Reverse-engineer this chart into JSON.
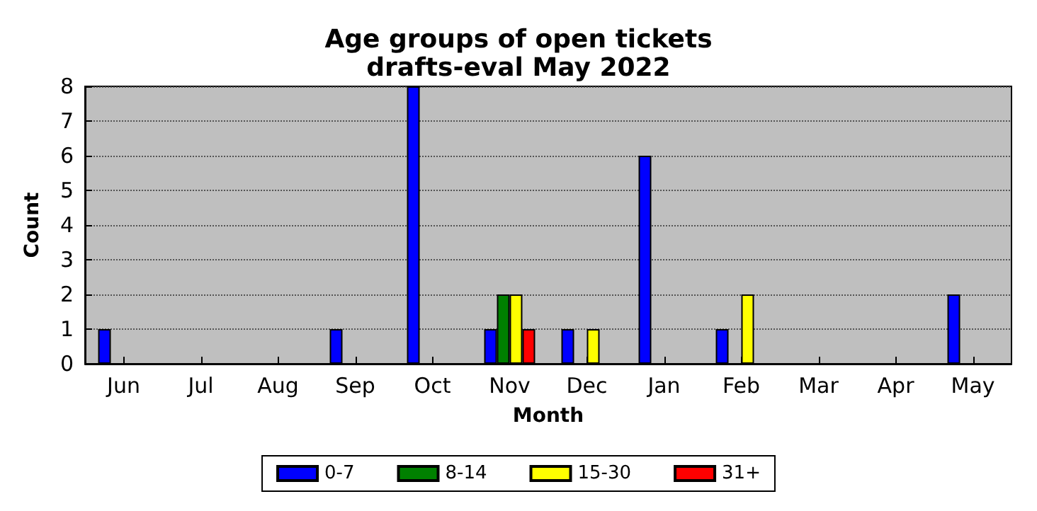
{
  "chart_data": {
    "type": "bar",
    "title": "Age groups of open tickets",
    "subtitle": "drafts-eval May 2022",
    "xlabel": "Month",
    "ylabel": "Count",
    "categories": [
      "Jun",
      "Jul",
      "Aug",
      "Sep",
      "Oct",
      "Nov",
      "Dec",
      "Jan",
      "Feb",
      "Mar",
      "Apr",
      "May"
    ],
    "series": [
      {
        "name": "0-7",
        "color": "#0000ff",
        "values": [
          1,
          0,
          0,
          1,
          8,
          1,
          1,
          6,
          1,
          0,
          0,
          2
        ]
      },
      {
        "name": "8-14",
        "color": "#008000",
        "values": [
          0,
          0,
          0,
          0,
          0,
          2,
          0,
          0,
          0,
          0,
          0,
          0
        ]
      },
      {
        "name": "15-30",
        "color": "#ffff00",
        "values": [
          0,
          0,
          0,
          0,
          0,
          2,
          1,
          0,
          2,
          0,
          0,
          0
        ]
      },
      {
        "name": "31+",
        "color": "#ff0000",
        "values": [
          0,
          0,
          0,
          0,
          0,
          1,
          0,
          0,
          0,
          0,
          0,
          0
        ]
      }
    ],
    "ylim": [
      0,
      8
    ],
    "yticks": [
      0,
      1,
      2,
      3,
      4,
      5,
      6,
      7,
      8
    ],
    "grid": "y",
    "legend": "bottom"
  }
}
